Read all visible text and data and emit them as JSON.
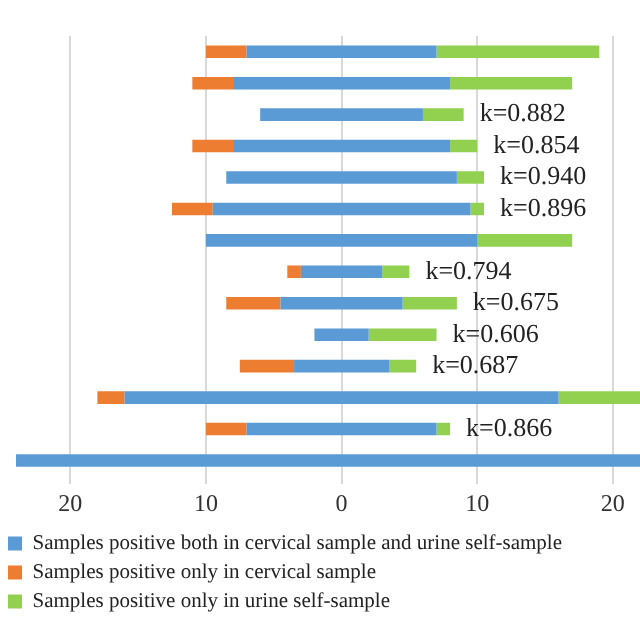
{
  "chart_data": {
    "type": "bar",
    "orientation": "horizontal",
    "categories": [
      null,
      null,
      null,
      null,
      null,
      null,
      null,
      null,
      null,
      null,
      null,
      null,
      null,
      null
    ],
    "series": [
      {
        "name": "Samples positive both in cervical sample and urine self-sample",
        "color": "#5b9bd5",
        "values": [
          14,
          16,
          12,
          16,
          17,
          19,
          20,
          6,
          9,
          4,
          7,
          32,
          14,
          46
        ],
        "base": [
          -7,
          -8,
          -6,
          -8,
          -8.5,
          -9.5,
          -10,
          -3,
          -4.5,
          -2,
          -3.5,
          -16,
          -7,
          -24
        ]
      },
      {
        "name": "Samples positive only in cervical sample",
        "color": "#ed7d31",
        "values": [
          3,
          3,
          null,
          3,
          null,
          3,
          null,
          1,
          4,
          null,
          4,
          2,
          3,
          null
        ],
        "base": [
          -10,
          -11,
          null,
          -11,
          null,
          -12.5,
          null,
          -4,
          -8.5,
          null,
          -7.5,
          -18,
          -10,
          null
        ]
      },
      {
        "name": "Samples positive only in urine self-sample",
        "color": "#92d050",
        "values": [
          12,
          9,
          3,
          2,
          2,
          1,
          7,
          2,
          4,
          5,
          2,
          6,
          1,
          null
        ],
        "base": [
          7,
          8,
          6,
          8,
          8.5,
          9.5,
          10,
          3,
          4.5,
          2,
          3.5,
          16,
          7,
          null
        ]
      }
    ],
    "annotations": [
      {
        "text": "k=0.882",
        "x": 9
      },
      {
        "text": "k=0.854",
        "x": 10
      },
      {
        "text": "k=0.940",
        "x": 10.5
      },
      {
        "text": "k=0.896",
        "x": 10.5
      },
      {
        "text": "k=0.794",
        "x": 5
      },
      {
        "text": "k=0.675",
        "x": 8.5
      },
      {
        "text": "k=0.606",
        "x": 7
      },
      {
        "text": "k=0.687",
        "x": 5.5
      },
      {
        "text": "k=0.866",
        "x": 8
      }
    ],
    "xlim": [
      -24,
      22
    ],
    "xticks": [
      {
        "value": -20,
        "label": "20"
      },
      {
        "value": -10,
        "label": "10"
      },
      0,
      10,
      20
    ],
    "grid": "x",
    "legend": "bottom",
    "tick_labels": "x"
  }
}
